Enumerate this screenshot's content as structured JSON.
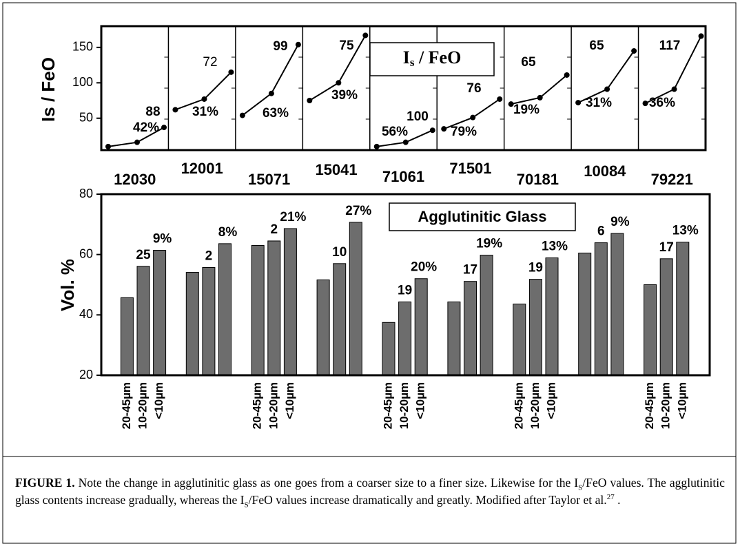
{
  "chart_data": [
    {
      "type": "line",
      "ylabel": "Is / FeO",
      "box_label": [
        "I",
        "s",
        " / FeO"
      ],
      "color": "#000000",
      "ylim": [
        5,
        180
      ],
      "yticks": [
        50,
        100,
        150
      ],
      "panels": [
        {
          "name": "12030",
          "values": [
            10,
            16,
            37
          ],
          "annotations": [
            "42%",
            "88"
          ]
        },
        {
          "name": "12001",
          "values": [
            62,
            77,
            115
          ],
          "annotations": [
            "31%",
            "72"
          ]
        },
        {
          "name": "15071",
          "values": [
            54,
            85,
            154
          ],
          "annotations": [
            "63%",
            "99"
          ]
        },
        {
          "name": "15041",
          "values": [
            75,
            100,
            167
          ],
          "annotations": [
            "39%",
            "75"
          ]
        },
        {
          "name": "71061",
          "values": [
            10,
            16,
            33
          ],
          "annotations": [
            "56%",
            "100"
          ]
        },
        {
          "name": "71501",
          "values": [
            35,
            51,
            77
          ],
          "annotations": [
            "79%",
            "76"
          ]
        },
        {
          "name": "70181",
          "values": [
            70,
            79,
            111
          ],
          "annotations": [
            "19%",
            "65"
          ]
        },
        {
          "name": "10084",
          "values": [
            72,
            91,
            145
          ],
          "annotations": [
            "31%",
            "65"
          ]
        },
        {
          "name": "79221",
          "values": [
            71,
            91,
            166
          ],
          "annotations": [
            "36%",
            "117"
          ]
        }
      ]
    },
    {
      "type": "bar",
      "ylabel": "Vol. %",
      "box_label": "Agglutinitic Glass",
      "color": "#6d6d6d",
      "ylim": [
        20,
        80
      ],
      "yticks": [
        20,
        40,
        60,
        80
      ],
      "groups": [
        {
          "categories": [
            "20-45µm",
            "10-20µm",
            "<10µm"
          ],
          "values": [
            45.7,
            56.1,
            61.4
          ],
          "annotations": [
            "25",
            "9%"
          ]
        },
        {
          "categories": [
            null,
            null,
            null
          ],
          "values": [
            54.1,
            55.7,
            63.6
          ],
          "annotations": [
            "2",
            "8%"
          ]
        },
        {
          "categories": [
            "20-45µm",
            "10-20µm",
            "<10µm"
          ],
          "values": [
            63.0,
            64.5,
            68.6
          ],
          "annotations": [
            "2",
            "21%"
          ]
        },
        {
          "categories": [
            null,
            null,
            null
          ],
          "values": [
            51.6,
            57.0,
            70.7
          ],
          "annotations": [
            "10",
            "27%"
          ]
        },
        {
          "categories": [
            "20-45µm",
            "10-20µm",
            "<10µm"
          ],
          "values": [
            37.5,
            44.3,
            52.0
          ],
          "annotations": [
            "19",
            "20%"
          ]
        },
        {
          "categories": [
            null,
            null,
            null
          ],
          "values": [
            44.3,
            51.1,
            59.8
          ],
          "annotations": [
            "17",
            "19%"
          ]
        },
        {
          "categories": [
            "20-45µm",
            "10-20µm",
            "<10µm"
          ],
          "values": [
            43.6,
            51.8,
            58.9
          ],
          "annotations": [
            "19",
            "13%"
          ]
        },
        {
          "categories": [
            null,
            null,
            null
          ],
          "values": [
            60.5,
            63.9,
            67.0
          ],
          "annotations": [
            "6",
            "9%"
          ]
        },
        {
          "categories": [
            "20-45µm",
            "10-20µm",
            "<10µm"
          ],
          "values": [
            50.0,
            58.6,
            64.1
          ],
          "annotations": [
            "17",
            "13%"
          ]
        }
      ]
    }
  ],
  "caption": {
    "label": "FIGURE 1.",
    "parts": [
      {
        "t": "  Note the change in agglutinitic glass as one goes from a coarser size to a finer size. Likewise for the I"
      },
      {
        "t": "S",
        "s": "sub"
      },
      {
        "t": "/FeO values.  The agglutinitic glass contents increase gradually, whereas the I"
      },
      {
        "t": "S",
        "s": "sub"
      },
      {
        "t": "/FeO values increase dramatically and greatly.  Modified after Taylor et al."
      },
      {
        "t": "27",
        "s": "sup"
      },
      {
        "t": " ."
      }
    ]
  }
}
